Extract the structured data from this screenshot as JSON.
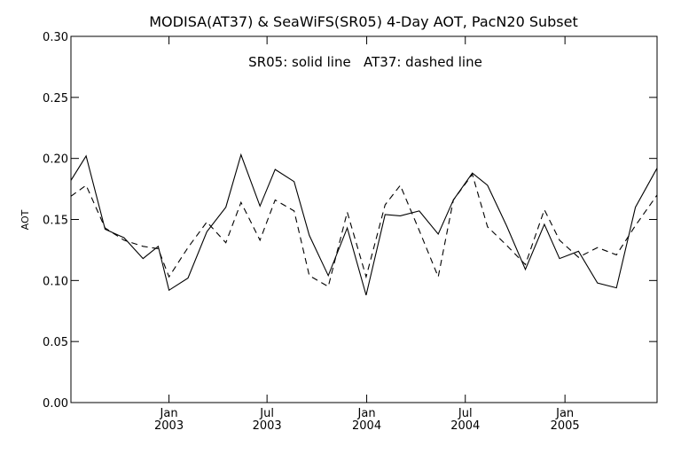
{
  "chart_data": {
    "type": "line",
    "title": "MODISA(AT37) & SeaWiFS(SR05) 4-Day AOT, PacN20 Subset",
    "annotation": "SR05: solid line   AT37: dashed line",
    "ylabel": "AOT",
    "xlabel": "",
    "ylim": [
      0.0,
      0.3
    ],
    "xlim": [
      "2002-07-04",
      "2005-06-20"
    ],
    "y_ticks": [
      "0.00",
      "0.05",
      "0.10",
      "0.15",
      "0.20",
      "0.25",
      "0.30"
    ],
    "x_ticks": [
      {
        "date": "2003-01-01",
        "month": "Jan",
        "year": "2003"
      },
      {
        "date": "2003-07-01",
        "month": "Jul",
        "year": "2003"
      },
      {
        "date": "2004-01-01",
        "month": "Jan",
        "year": "2004"
      },
      {
        "date": "2004-07-01",
        "month": "Jul",
        "year": "2004"
      },
      {
        "date": "2005-01-01",
        "month": "Jan",
        "year": "2005"
      }
    ],
    "grid": false,
    "series": [
      {
        "name": "SR05",
        "style": "solid",
        "points": [
          [
            "2002-07-04",
            0.182
          ],
          [
            "2002-08-01",
            0.202
          ],
          [
            "2002-09-05",
            0.142
          ],
          [
            "2002-10-10",
            0.135
          ],
          [
            "2002-11-14",
            0.118
          ],
          [
            "2002-12-12",
            0.128
          ],
          [
            "2003-01-01",
            0.092
          ],
          [
            "2003-02-05",
            0.102
          ],
          [
            "2003-03-12",
            0.14
          ],
          [
            "2003-04-16",
            0.16
          ],
          [
            "2003-05-14",
            0.203
          ],
          [
            "2003-06-18",
            0.161
          ],
          [
            "2003-07-16",
            0.191
          ],
          [
            "2003-08-20",
            0.181
          ],
          [
            "2003-09-17",
            0.137
          ],
          [
            "2003-10-22",
            0.104
          ],
          [
            "2003-11-26",
            0.143
          ],
          [
            "2003-12-31",
            0.088
          ],
          [
            "2004-02-04",
            0.154
          ],
          [
            "2004-03-03",
            0.153
          ],
          [
            "2004-04-07",
            0.157
          ],
          [
            "2004-05-12",
            0.138
          ],
          [
            "2004-06-09",
            0.166
          ],
          [
            "2004-07-14",
            0.188
          ],
          [
            "2004-08-11",
            0.178
          ],
          [
            "2004-09-15",
            0.145
          ],
          [
            "2004-10-20",
            0.109
          ],
          [
            "2004-11-24",
            0.146
          ],
          [
            "2004-12-22",
            0.118
          ],
          [
            "2005-01-26",
            0.124
          ],
          [
            "2005-03-02",
            0.098
          ],
          [
            "2005-04-06",
            0.094
          ],
          [
            "2005-05-11",
            0.16
          ],
          [
            "2005-06-20",
            0.192
          ]
        ]
      },
      {
        "name": "AT37",
        "style": "dashed",
        "points": [
          [
            "2002-07-04",
            0.169
          ],
          [
            "2002-08-01",
            0.178
          ],
          [
            "2002-09-05",
            0.143
          ],
          [
            "2002-10-10",
            0.133
          ],
          [
            "2002-11-14",
            0.128
          ],
          [
            "2002-12-12",
            0.126
          ],
          [
            "2003-01-01",
            0.103
          ],
          [
            "2003-02-05",
            0.127
          ],
          [
            "2003-03-12",
            0.148
          ],
          [
            "2003-04-16",
            0.131
          ],
          [
            "2003-05-14",
            0.164
          ],
          [
            "2003-06-18",
            0.133
          ],
          [
            "2003-07-16",
            0.166
          ],
          [
            "2003-08-20",
            0.157
          ],
          [
            "2003-09-17",
            0.104
          ],
          [
            "2003-10-22",
            0.095
          ],
          [
            "2003-11-26",
            0.156
          ],
          [
            "2003-12-31",
            0.103
          ],
          [
            "2004-02-04",
            0.162
          ],
          [
            "2004-03-03",
            0.178
          ],
          [
            "2004-04-07",
            0.141
          ],
          [
            "2004-05-12",
            0.103
          ],
          [
            "2004-06-09",
            0.166
          ],
          [
            "2004-07-14",
            0.187
          ],
          [
            "2004-08-11",
            0.144
          ],
          [
            "2004-09-15",
            0.129
          ],
          [
            "2004-10-20",
            0.113
          ],
          [
            "2004-11-24",
            0.158
          ],
          [
            "2004-12-22",
            0.133
          ],
          [
            "2005-01-26",
            0.119
          ],
          [
            "2005-03-02",
            0.127
          ],
          [
            "2005-04-06",
            0.121
          ],
          [
            "2005-05-11",
            0.145
          ],
          [
            "2005-06-20",
            0.17
          ]
        ]
      }
    ]
  }
}
